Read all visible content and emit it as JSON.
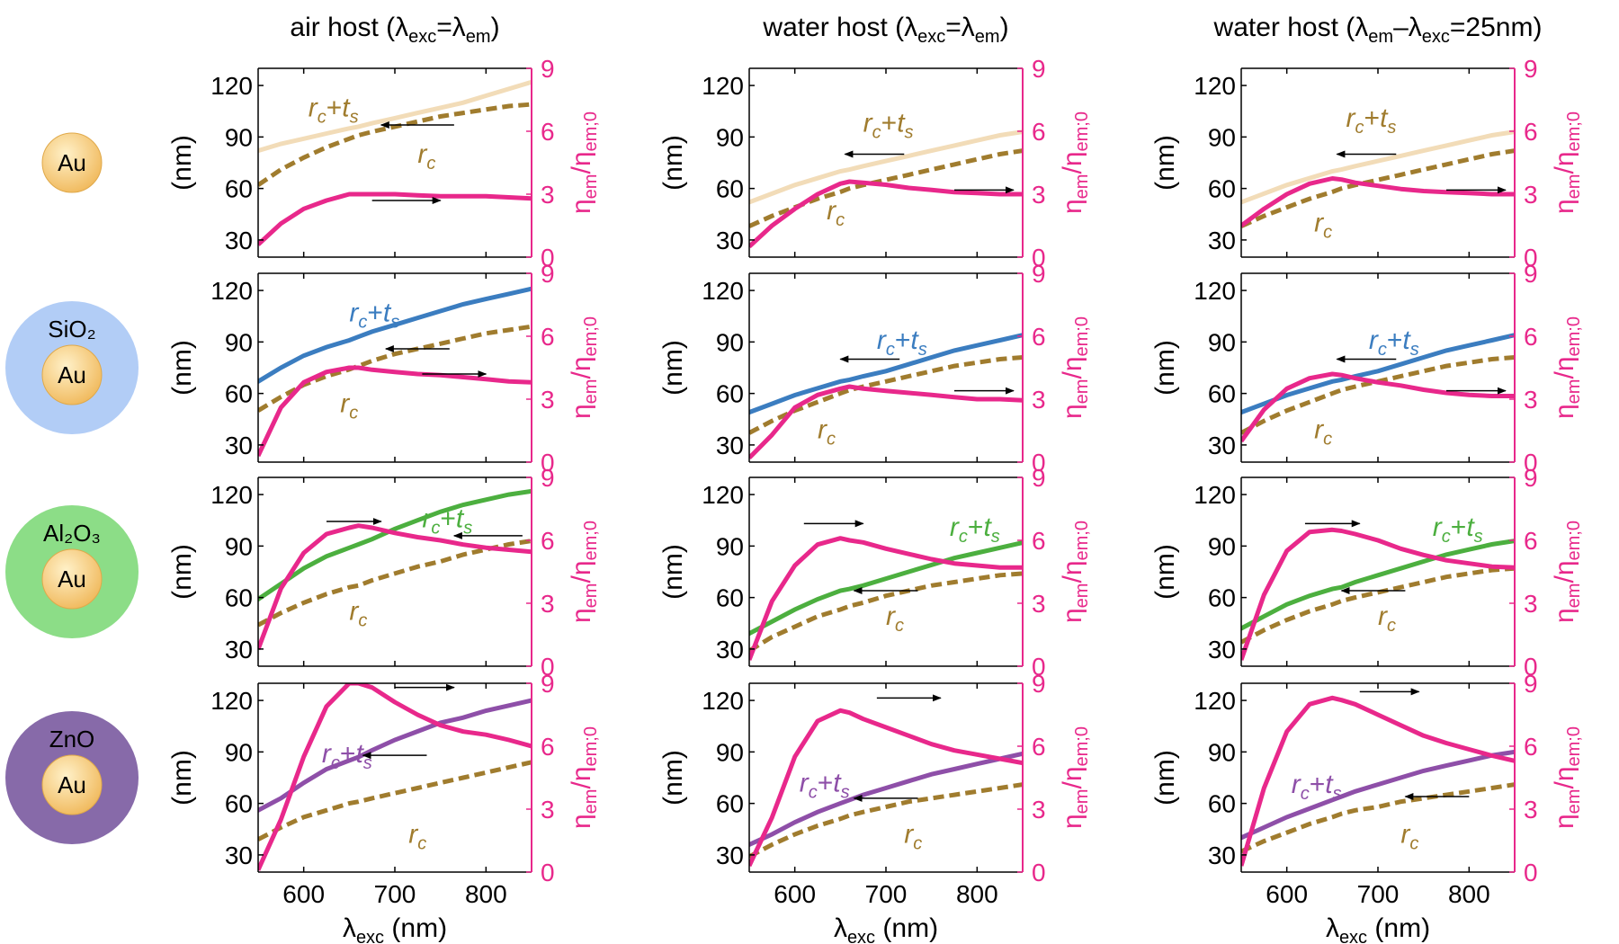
{
  "chart_data": {
    "type": "line",
    "column_titles": [
      {
        "host": "air host (",
        "sym1": "λ",
        "sub1": "exc",
        "mid": "=",
        "sym2": "λ",
        "sub2": "em",
        "end": ")"
      },
      {
        "host": "water host (",
        "sym1": "λ",
        "sub1": "exc",
        "mid": "=",
        "sym2": "λ",
        "sub2": "em",
        "end": ")"
      },
      {
        "host": "water host (",
        "sym1": "λ",
        "sub1": "em",
        "mid": "–",
        "sym2": "λ",
        "sub2": "exc",
        "end": "=25nm)"
      }
    ],
    "row_labels": [
      {
        "core": "Au",
        "shell": null,
        "shell_color": null
      },
      {
        "core": "Au",
        "shell": "SiO₂",
        "shell_color": "#aac8f5"
      },
      {
        "core": "Au",
        "shell": "Al₂O₃",
        "shell_color": "#7fd97a"
      },
      {
        "core": "Au",
        "shell": "ZnO",
        "shell_color": "#7a5aa0"
      }
    ],
    "core_color": "#f5c46a",
    "x_axis": {
      "label": "λ",
      "label_sub": "exc",
      "label_unit": " (nm)",
      "range": [
        550,
        850
      ],
      "ticks": [
        600,
        700,
        800
      ]
    },
    "y_left": {
      "label": "(nm)",
      "range": [
        20,
        130
      ],
      "ticks": [
        30,
        60,
        90,
        120
      ]
    },
    "y_right": {
      "label": "η",
      "label_sub1": "em",
      "label_mid": "/η",
      "label_sub2": "em;0",
      "range": [
        0,
        9
      ],
      "ticks": [
        0,
        3,
        6,
        9
      ],
      "color": "#e8288b"
    },
    "labels": {
      "rc": "r",
      "rc_sub": "c",
      "plus": "+",
      "ts": "t",
      "ts_sub": "s"
    },
    "series_colors": {
      "eta": "#e8288b",
      "rc": "#a07c2e",
      "rcts": [
        "#f2dcb8",
        "#3b7dc0",
        "#4caf3f",
        "#8e4fa8"
      ]
    },
    "x": [
      550,
      575,
      600,
      625,
      650,
      660,
      675,
      700,
      725,
      750,
      775,
      800,
      825,
      850
    ],
    "panels": [
      [
        {
          "rc": [
            62,
            71,
            78,
            84,
            89,
            91,
            93,
            96,
            99,
            102,
            104,
            106,
            108,
            109
          ],
          "rcts": [
            82,
            86,
            89,
            92,
            95,
            96,
            98,
            101,
            104,
            107,
            110,
            114,
            118,
            122
          ],
          "eta": [
            0.6,
            1.6,
            2.3,
            2.7,
            3.0,
            3.0,
            3.0,
            3.0,
            2.95,
            2.9,
            2.9,
            2.9,
            2.85,
            2.8
          ]
        },
        {
          "rc": [
            38,
            44,
            49,
            54,
            58,
            60,
            62,
            65,
            68,
            71,
            74,
            77,
            80,
            82
          ],
          "rcts": [
            52,
            57,
            62,
            66,
            70,
            71,
            73,
            76,
            79,
            82,
            85,
            88,
            91,
            93
          ],
          "eta": [
            0.5,
            1.5,
            2.3,
            3.0,
            3.5,
            3.6,
            3.55,
            3.45,
            3.3,
            3.2,
            3.1,
            3.05,
            3.0,
            3.0
          ]
        },
        {
          "rc": [
            38,
            44,
            49,
            54,
            58,
            60,
            62,
            65,
            68,
            71,
            74,
            77,
            80,
            82
          ],
          "rcts": [
            52,
            57,
            62,
            66,
            70,
            71,
            73,
            76,
            79,
            82,
            85,
            88,
            91,
            93
          ],
          "eta": [
            1.5,
            2.3,
            3.0,
            3.5,
            3.75,
            3.7,
            3.55,
            3.4,
            3.25,
            3.15,
            3.1,
            3.05,
            3.0,
            3.0
          ]
        }
      ],
      [
        {
          "rc": [
            50,
            58,
            65,
            70,
            74,
            76,
            79,
            83,
            86,
            89,
            92,
            95,
            97,
            99
          ],
          "rcts": [
            67,
            75,
            82,
            87,
            91,
            93,
            96,
            100,
            104,
            108,
            112,
            115,
            118,
            121
          ],
          "eta": [
            0.3,
            2.6,
            3.8,
            4.3,
            4.5,
            4.5,
            4.4,
            4.3,
            4.2,
            4.15,
            4.05,
            3.95,
            3.85,
            3.8
          ]
        },
        {
          "rc": [
            37,
            44,
            50,
            55,
            60,
            62,
            64,
            67,
            70,
            73,
            76,
            78,
            80,
            81
          ],
          "rcts": [
            49,
            54,
            59,
            63,
            67,
            68,
            70,
            73,
            77,
            81,
            85,
            88,
            91,
            94
          ],
          "eta": [
            0.2,
            1.3,
            2.6,
            3.2,
            3.5,
            3.6,
            3.5,
            3.4,
            3.3,
            3.2,
            3.1,
            3.0,
            3.0,
            2.95
          ]
        },
        {
          "rc": [
            37,
            44,
            50,
            55,
            60,
            62,
            64,
            67,
            70,
            73,
            76,
            78,
            80,
            81
          ],
          "rcts": [
            49,
            54,
            59,
            63,
            67,
            68,
            70,
            73,
            77,
            81,
            85,
            88,
            91,
            94
          ],
          "eta": [
            1.0,
            2.5,
            3.5,
            4.0,
            4.2,
            4.15,
            4.0,
            3.8,
            3.65,
            3.45,
            3.3,
            3.2,
            3.15,
            3.15
          ]
        }
      ],
      [
        {
          "rc": [
            44,
            51,
            57,
            62,
            66,
            67,
            70,
            74,
            78,
            81,
            85,
            88,
            91,
            93
          ],
          "rcts": [
            59,
            68,
            77,
            84,
            89,
            91,
            94,
            100,
            105,
            110,
            114,
            117,
            120,
            122
          ],
          "eta": [
            0.8,
            3.7,
            5.4,
            6.3,
            6.6,
            6.7,
            6.6,
            6.35,
            6.15,
            6.0,
            5.8,
            5.65,
            5.55,
            5.45
          ]
        },
        {
          "rc": [
            29,
            37,
            43,
            49,
            53,
            55,
            57,
            61,
            64,
            67,
            69,
            71,
            73,
            74
          ],
          "rcts": [
            39,
            46,
            53,
            59,
            64,
            65,
            67,
            71,
            75,
            79,
            83,
            86,
            89,
            92
          ],
          "eta": [
            0.3,
            3.1,
            4.8,
            5.8,
            6.1,
            6.0,
            5.9,
            5.6,
            5.35,
            5.1,
            4.9,
            4.8,
            4.7,
            4.7
          ]
        },
        {
          "rc": [
            34,
            41,
            47,
            52,
            56,
            58,
            60,
            63,
            66,
            69,
            72,
            74,
            76,
            77
          ],
          "rcts": [
            42,
            49,
            56,
            61,
            65,
            66,
            69,
            73,
            77,
            81,
            85,
            88,
            91,
            93
          ],
          "eta": [
            0.3,
            3.4,
            5.5,
            6.4,
            6.5,
            6.45,
            6.3,
            6.0,
            5.6,
            5.3,
            5.05,
            4.9,
            4.75,
            4.7
          ]
        }
      ],
      [
        {
          "rc": [
            39,
            46,
            52,
            56,
            60,
            61,
            63,
            66,
            69,
            72,
            75,
            78,
            81,
            84
          ],
          "rcts": [
            56,
            63,
            72,
            80,
            85,
            87,
            91,
            97,
            102,
            107,
            110,
            114,
            117,
            120
          ],
          "eta": [
            0.1,
            2.5,
            5.5,
            7.9,
            9.0,
            9.0,
            8.8,
            8.1,
            7.5,
            7.0,
            6.7,
            6.55,
            6.3,
            6.0
          ]
        },
        {
          "rc": [
            29,
            36,
            42,
            47,
            51,
            53,
            55,
            58,
            61,
            63,
            65,
            67,
            69,
            71
          ],
          "rcts": [
            36,
            42,
            49,
            55,
            60,
            62,
            65,
            69,
            73,
            77,
            80,
            83,
            86,
            89
          ],
          "eta": [
            0.3,
            2.6,
            5.5,
            7.2,
            7.7,
            7.6,
            7.3,
            6.9,
            6.5,
            6.1,
            5.8,
            5.6,
            5.4,
            5.2
          ]
        },
        {
          "rc": [
            32,
            38,
            43,
            48,
            52,
            54,
            56,
            58,
            61,
            63,
            65,
            67,
            69,
            71
          ],
          "rcts": [
            40,
            46,
            52,
            57,
            62,
            64,
            67,
            71,
            75,
            79,
            82,
            85,
            88,
            90
          ],
          "eta": [
            0.3,
            4.0,
            6.7,
            8.0,
            8.3,
            8.2,
            8.0,
            7.5,
            7.0,
            6.5,
            6.15,
            5.85,
            5.55,
            5.3
          ]
        }
      ]
    ],
    "arrows": [
      [
        {
          "left": {
            "x1": 765,
            "x2": 685,
            "y": 97
          },
          "right": {
            "x1": 675,
            "x2": 750,
            "y": 2.7
          }
        },
        {
          "left": {
            "x1": 720,
            "x2": 655,
            "y": 80
          },
          "right": {
            "x1": 775,
            "x2": 840,
            "y": 3.2
          }
        },
        {
          "left": {
            "x1": 720,
            "x2": 655,
            "y": 80
          },
          "right": {
            "x1": 775,
            "x2": 840,
            "y": 3.2
          }
        }
      ],
      [
        {
          "left": {
            "x1": 760,
            "x2": 690,
            "y": 86
          },
          "right": {
            "x1": 730,
            "x2": 800,
            "y": 4.2
          }
        },
        {
          "left": {
            "x1": 715,
            "x2": 650,
            "y": 80
          },
          "right": {
            "x1": 775,
            "x2": 840,
            "y": 3.4
          }
        },
        {
          "left": {
            "x1": 720,
            "x2": 655,
            "y": 80
          },
          "right": {
            "x1": 775,
            "x2": 840,
            "y": 3.4
          }
        }
      ],
      [
        {
          "left": {
            "x1": 840,
            "x2": 765,
            "y": 96
          },
          "right": {
            "x1": 625,
            "x2": 685,
            "y": 6.9
          }
        },
        {
          "left": {
            "x1": 735,
            "x2": 665,
            "y": 64
          },
          "right": {
            "x1": 610,
            "x2": 675,
            "y": 6.8
          }
        },
        {
          "left": {
            "x1": 730,
            "x2": 660,
            "y": 64
          },
          "right": {
            "x1": 620,
            "x2": 680,
            "y": 6.8
          }
        }
      ],
      [
        {
          "left": {
            "x1": 735,
            "x2": 665,
            "y": 88
          },
          "right": {
            "x1": 700,
            "x2": 765,
            "y": 8.8
          }
        },
        {
          "left": {
            "x1": 735,
            "x2": 665,
            "y": 63
          },
          "right": {
            "x1": 690,
            "x2": 760,
            "y": 8.3
          }
        },
        {
          "left": {
            "x1": 800,
            "x2": 730,
            "y": 64
          },
          "right": {
            "x1": 680,
            "x2": 745,
            "y": 8.6
          }
        }
      ]
    ],
    "curve_labels": [
      [
        {
          "rcts": {
            "x": 605,
            "y": 102
          },
          "rc": {
            "x": 725,
            "y": 75
          }
        },
        {
          "rcts": {
            "x": 675,
            "y": 93
          },
          "rc": {
            "x": 635,
            "y": 42
          }
        },
        {
          "rcts": {
            "x": 665,
            "y": 96
          },
          "rc": {
            "x": 630,
            "y": 35
          }
        }
      ],
      [
        {
          "rcts": {
            "x": 650,
            "y": 102
          },
          "rc": {
            "x": 640,
            "y": 49
          }
        },
        {
          "rcts": {
            "x": 690,
            "y": 86
          },
          "rc": {
            "x": 625,
            "y": 34
          }
        },
        {
          "rcts": {
            "x": 690,
            "y": 86
          },
          "rc": {
            "x": 630,
            "y": 34
          }
        }
      ],
      [
        {
          "rcts": {
            "x": 730,
            "y": 101
          },
          "rc": {
            "x": 650,
            "y": 47
          }
        },
        {
          "rcts": {
            "x": 770,
            "y": 96
          },
          "rc": {
            "x": 700,
            "y": 44
          }
        },
        {
          "rcts": {
            "x": 760,
            "y": 96
          },
          "rc": {
            "x": 700,
            "y": 44
          }
        }
      ],
      [
        {
          "rcts": {
            "x": 620,
            "y": 84
          },
          "rc": {
            "x": 715,
            "y": 37
          }
        },
        {
          "rcts": {
            "x": 605,
            "y": 67
          },
          "rc": {
            "x": 720,
            "y": 37
          }
        },
        {
          "rcts": {
            "x": 605,
            "y": 66
          },
          "rc": {
            "x": 725,
            "y": 37
          }
        }
      ]
    ]
  }
}
